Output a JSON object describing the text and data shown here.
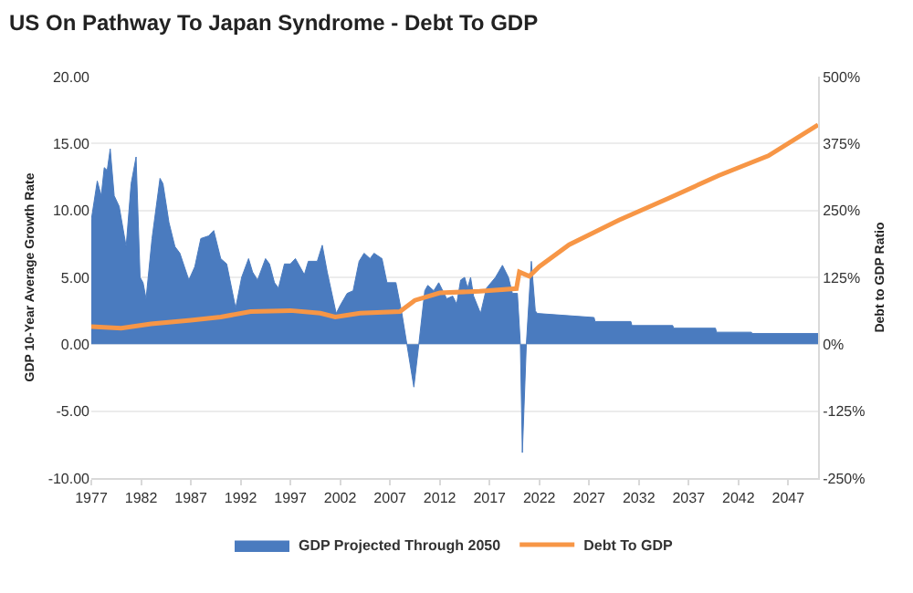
{
  "chart_data": {
    "type": "area",
    "title": "US On Pathway To Japan Syndrome - Debt To GDP",
    "ylabel": "GDP 10-Year Average Growth Rate",
    "y2label": "Debt to GDP Ratio",
    "series": [
      {
        "name": "GDP Projected Through 2050",
        "color": "#4a7bbf",
        "x": [
          1977.0,
          1977.6,
          1978.0,
          1978.3,
          1978.6,
          1978.9,
          1979.3,
          1979.8,
          1980.5,
          1981.0,
          1981.5,
          1981.9,
          1982.2,
          1982.5,
          1983.1,
          1983.9,
          1984.2,
          1984.8,
          1985.4,
          1985.9,
          1986.8,
          1987.4,
          1988.0,
          1988.8,
          1989.3,
          1990.0,
          1990.6,
          1991.2,
          1991.5,
          1992.1,
          1992.8,
          1993.2,
          1993.7,
          1994.5,
          1994.9,
          1995.4,
          1995.8,
          1996.4,
          1997.0,
          1997.5,
          1998.4,
          1998.8,
          1999.7,
          2000.2,
          2000.7,
          2001.6,
          2002.0,
          2002.7,
          2003.3,
          2003.9,
          2004.4,
          2005.0,
          2005.4,
          2006.2,
          2006.7,
          2007.6,
          2008.2,
          2008.7,
          2009.4,
          2009.9,
          2010.5,
          2010.8,
          2011.4,
          2011.9,
          2012.7,
          2013.3,
          2013.7,
          2014.1,
          2014.5,
          2014.8,
          2015.1,
          2015.4,
          2016.1,
          2016.7,
          2017.6,
          2018.3,
          2018.9,
          2019.3,
          2019.8,
          2020.1,
          2020.3,
          2020.7,
          2021.2,
          2021.6,
          2021.8,
          2027.5,
          2027.6,
          2031.2,
          2031.3,
          2035.4,
          2035.5,
          2039.7,
          2039.8,
          2043.3,
          2043.4,
          2050.0
        ],
        "values": [
          9.3,
          12.2,
          11.1,
          13.2,
          13.0,
          14.6,
          11.1,
          10.3,
          7.3,
          12.0,
          14.0,
          5.0,
          4.6,
          3.4,
          7.9,
          12.4,
          12.0,
          9.1,
          7.3,
          6.8,
          4.8,
          5.8,
          7.9,
          8.1,
          8.5,
          6.4,
          6.0,
          3.8,
          2.7,
          5.0,
          6.4,
          5.4,
          4.8,
          6.4,
          6.0,
          4.6,
          4.2,
          6.0,
          6.0,
          6.4,
          5.2,
          6.2,
          6.2,
          7.4,
          5.4,
          2.3,
          2.9,
          3.8,
          4.0,
          6.2,
          6.8,
          6.4,
          6.8,
          6.4,
          4.6,
          4.6,
          2.3,
          0,
          -3.2,
          0,
          4.0,
          4.4,
          4.0,
          4.6,
          3.4,
          3.6,
          3.0,
          4.8,
          5.0,
          4.2,
          5.0,
          3.6,
          2.3,
          4.2,
          5.0,
          5.9,
          5.0,
          3.8,
          3.8,
          0,
          -8.1,
          0,
          6.2,
          2.5,
          2.3,
          2.0,
          1.7,
          1.7,
          1.4,
          1.4,
          1.2,
          1.2,
          0.9,
          0.9,
          0.8,
          0.8
        ]
      },
      {
        "name": "Debt To GDP",
        "type": "line",
        "axis": "y2",
        "color": "#f79646",
        "x": [
          1977,
          1980,
          1983,
          1987,
          1990,
          1993,
          1997,
          2000,
          2001.5,
          2004,
          2008,
          2009.5,
          2012,
          2016,
          2019.7,
          2020,
          2021,
          2022,
          2025,
          2030,
          2035,
          2040,
          2045,
          2050
        ],
        "values": [
          33,
          30,
          38,
          45,
          51,
          61,
          63,
          58,
          51,
          58,
          61,
          82,
          96,
          99,
          104,
          135,
          127,
          145,
          186,
          232,
          273,
          315,
          352,
          410
        ]
      }
    ],
    "xlim": [
      1977,
      2050
    ],
    "xticks": [
      1977,
      1982,
      1987,
      1992,
      1997,
      2002,
      2007,
      2012,
      2017,
      2022,
      2027,
      2032,
      2037,
      2042,
      2047
    ],
    "ylim": [
      -10,
      20
    ],
    "yticks": [
      {
        "value": -10,
        "label": "-10.00"
      },
      {
        "value": -5,
        "label": "-5.00"
      },
      {
        "value": 0,
        "label": "0.00"
      },
      {
        "value": 5,
        "label": "5.00"
      },
      {
        "value": 10,
        "label": "10.00"
      },
      {
        "value": 15,
        "label": "15.00"
      },
      {
        "value": 20,
        "label": "20.00"
      }
    ],
    "y2lim": [
      -250,
      500
    ],
    "y2ticks": [
      {
        "value": -250,
        "label": "-250%"
      },
      {
        "value": -125,
        "label": "-125%"
      },
      {
        "value": 0,
        "label": "0%"
      },
      {
        "value": 125,
        "label": "125%"
      },
      {
        "value": 250,
        "label": "250%"
      },
      {
        "value": 375,
        "label": "375%"
      },
      {
        "value": 500,
        "label": "500%"
      }
    ],
    "grid": "y",
    "legend": "bottom",
    "line_style": "solid",
    "marker": "none"
  }
}
